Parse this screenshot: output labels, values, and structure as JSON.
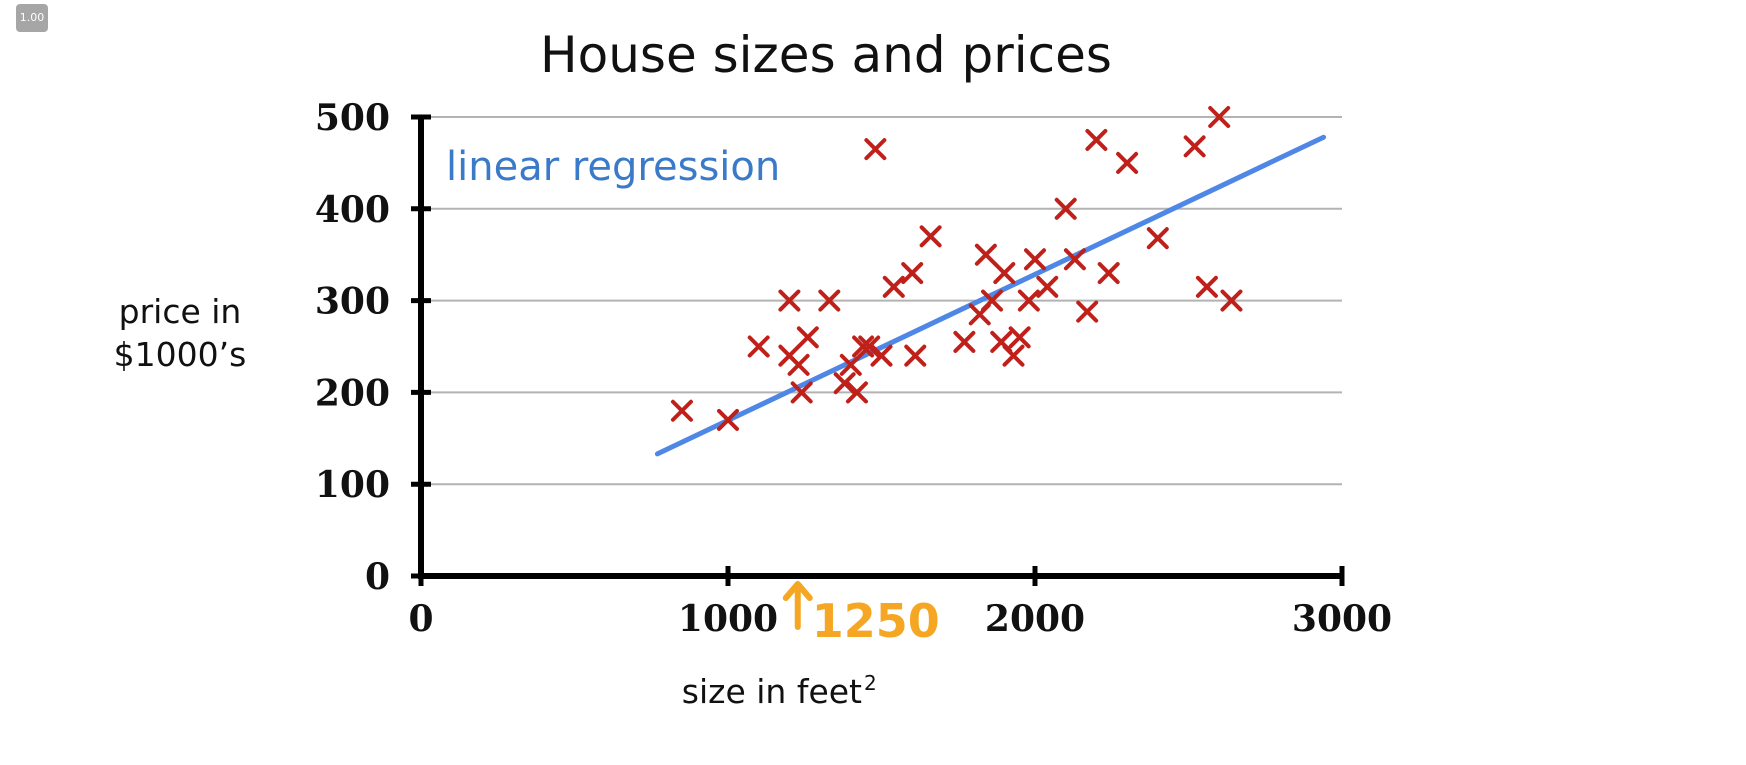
{
  "zoom_badge": "1.00",
  "chart_data": {
    "type": "scatter",
    "title": "House sizes and prices",
    "xlabel": "size in feet",
    "xlabel_superscript": "2",
    "ylabel_lines": [
      "price in",
      "$1000’s"
    ],
    "xlim": [
      0,
      3000
    ],
    "ylim": [
      0,
      500
    ],
    "x_ticks": [
      0,
      1000,
      2000,
      3000
    ],
    "y_ticks": [
      0,
      100,
      200,
      300,
      400,
      500
    ],
    "grid": "horizontal",
    "colors": {
      "points": "#c0201a",
      "regression": "#4f87e6",
      "regression_label": "#3a7ac8",
      "annotation": "#f5a623",
      "axis": "#000000",
      "grid": "#b3b3b3"
    },
    "series": [
      {
        "marker": "x",
        "points": [
          [
            850,
            180
          ],
          [
            1000,
            170
          ],
          [
            1100,
            250
          ],
          [
            1200,
            300
          ],
          [
            1200,
            240
          ],
          [
            1230,
            230
          ],
          [
            1240,
            200
          ],
          [
            1260,
            260
          ],
          [
            1330,
            300
          ],
          [
            1380,
            210
          ],
          [
            1400,
            230
          ],
          [
            1420,
            200
          ],
          [
            1440,
            250
          ],
          [
            1460,
            250
          ],
          [
            1480,
            465
          ],
          [
            1500,
            240
          ],
          [
            1540,
            315
          ],
          [
            1600,
            330
          ],
          [
            1610,
            240
          ],
          [
            1660,
            370
          ],
          [
            1770,
            255
          ],
          [
            1820,
            285
          ],
          [
            1840,
            350
          ],
          [
            1860,
            300
          ],
          [
            1890,
            255
          ],
          [
            1900,
            330
          ],
          [
            1930,
            240
          ],
          [
            1950,
            260
          ],
          [
            1980,
            300
          ],
          [
            2000,
            345
          ],
          [
            2040,
            315
          ],
          [
            2100,
            400
          ],
          [
            2130,
            345
          ],
          [
            2170,
            288
          ],
          [
            2200,
            475
          ],
          [
            2240,
            330
          ],
          [
            2300,
            450
          ],
          [
            2400,
            368
          ],
          [
            2520,
            468
          ],
          [
            2560,
            315
          ],
          [
            2600,
            500
          ],
          [
            2640,
            300
          ]
        ]
      },
      {
        "name": "linear regression",
        "type": "line",
        "points": [
          [
            770,
            133
          ],
          [
            2940,
            478
          ]
        ]
      }
    ],
    "annotations": [
      {
        "text": "1250",
        "x": 1250,
        "arrow": "up"
      }
    ]
  }
}
